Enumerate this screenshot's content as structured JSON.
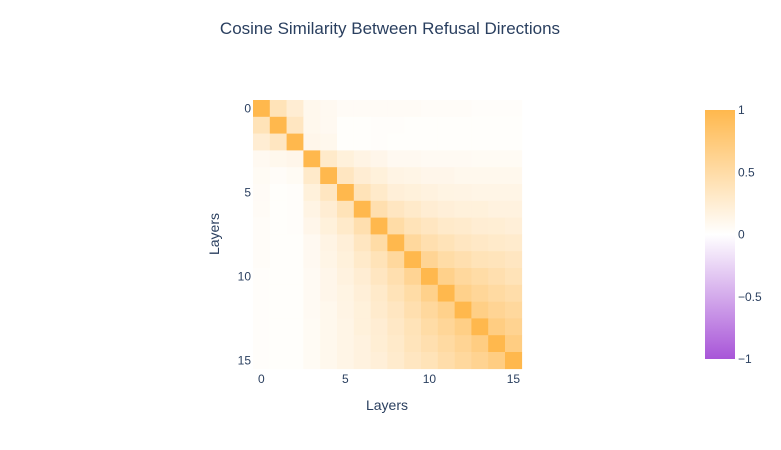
{
  "chart_data": {
    "type": "heatmap",
    "title": "Cosine Similarity Between Refusal Directions",
    "xlabel": "Layers",
    "ylabel": "Layers",
    "x_ticks": [
      "0",
      "5",
      "10",
      "15"
    ],
    "y_ticks": [
      "0",
      "5",
      "10",
      "15"
    ],
    "zmin": -1,
    "zmax": 1,
    "colorscale": [
      "#a855d8",
      "#ffffff",
      "#ffb84d"
    ],
    "colorbar_ticks": [
      "1",
      "0.5",
      "0",
      "−0.5",
      "−1"
    ],
    "z": [
      [
        1.0,
        0.4,
        0.25,
        0.1,
        0.08,
        0.05,
        0.05,
        0.05,
        0.05,
        0.05,
        0.04,
        0.04,
        0.04,
        0.03,
        0.03,
        0.03
      ],
      [
        0.4,
        1.0,
        0.35,
        0.1,
        0.08,
        0.02,
        0.02,
        0.03,
        0.03,
        0.02,
        0.02,
        0.02,
        0.02,
        0.02,
        0.02,
        0.02
      ],
      [
        0.25,
        0.35,
        1.0,
        0.12,
        0.1,
        0.02,
        0.02,
        0.03,
        0.02,
        0.02,
        0.02,
        0.02,
        0.02,
        0.02,
        0.02,
        0.02
      ],
      [
        0.08,
        0.1,
        0.12,
        1.0,
        0.3,
        0.2,
        0.15,
        0.12,
        0.08,
        0.08,
        0.07,
        0.07,
        0.07,
        0.06,
        0.06,
        0.06
      ],
      [
        0.06,
        0.04,
        0.06,
        0.3,
        1.0,
        0.35,
        0.25,
        0.2,
        0.15,
        0.14,
        0.12,
        0.12,
        0.1,
        0.1,
        0.1,
        0.1
      ],
      [
        0.05,
        0.02,
        0.03,
        0.2,
        0.35,
        1.0,
        0.4,
        0.3,
        0.22,
        0.2,
        0.18,
        0.16,
        0.15,
        0.14,
        0.14,
        0.14
      ],
      [
        0.05,
        0.02,
        0.03,
        0.15,
        0.25,
        0.4,
        1.0,
        0.45,
        0.35,
        0.3,
        0.25,
        0.22,
        0.2,
        0.2,
        0.18,
        0.18
      ],
      [
        0.04,
        0.02,
        0.03,
        0.12,
        0.2,
        0.3,
        0.45,
        1.0,
        0.5,
        0.4,
        0.35,
        0.3,
        0.28,
        0.25,
        0.24,
        0.22
      ],
      [
        0.04,
        0.02,
        0.02,
        0.08,
        0.15,
        0.22,
        0.35,
        0.5,
        1.0,
        0.55,
        0.45,
        0.4,
        0.35,
        0.32,
        0.3,
        0.28
      ],
      [
        0.04,
        0.02,
        0.02,
        0.08,
        0.14,
        0.2,
        0.3,
        0.4,
        0.55,
        1.0,
        0.6,
        0.5,
        0.45,
        0.4,
        0.38,
        0.35
      ],
      [
        0.03,
        0.02,
        0.02,
        0.07,
        0.12,
        0.18,
        0.25,
        0.35,
        0.45,
        0.6,
        1.0,
        0.65,
        0.55,
        0.5,
        0.45,
        0.4
      ],
      [
        0.03,
        0.02,
        0.02,
        0.07,
        0.12,
        0.16,
        0.22,
        0.3,
        0.4,
        0.5,
        0.65,
        1.0,
        0.65,
        0.58,
        0.52,
        0.48
      ],
      [
        0.03,
        0.02,
        0.02,
        0.07,
        0.1,
        0.15,
        0.2,
        0.28,
        0.35,
        0.45,
        0.55,
        0.65,
        1.0,
        0.68,
        0.6,
        0.55
      ],
      [
        0.03,
        0.02,
        0.02,
        0.06,
        0.1,
        0.14,
        0.2,
        0.25,
        0.32,
        0.4,
        0.5,
        0.58,
        0.68,
        1.0,
        0.7,
        0.62
      ],
      [
        0.03,
        0.02,
        0.02,
        0.06,
        0.1,
        0.14,
        0.18,
        0.24,
        0.3,
        0.38,
        0.45,
        0.52,
        0.6,
        0.7,
        1.0,
        0.7
      ],
      [
        0.03,
        0.02,
        0.02,
        0.06,
        0.1,
        0.14,
        0.18,
        0.22,
        0.28,
        0.35,
        0.4,
        0.48,
        0.55,
        0.62,
        0.7,
        1.0
      ]
    ]
  }
}
